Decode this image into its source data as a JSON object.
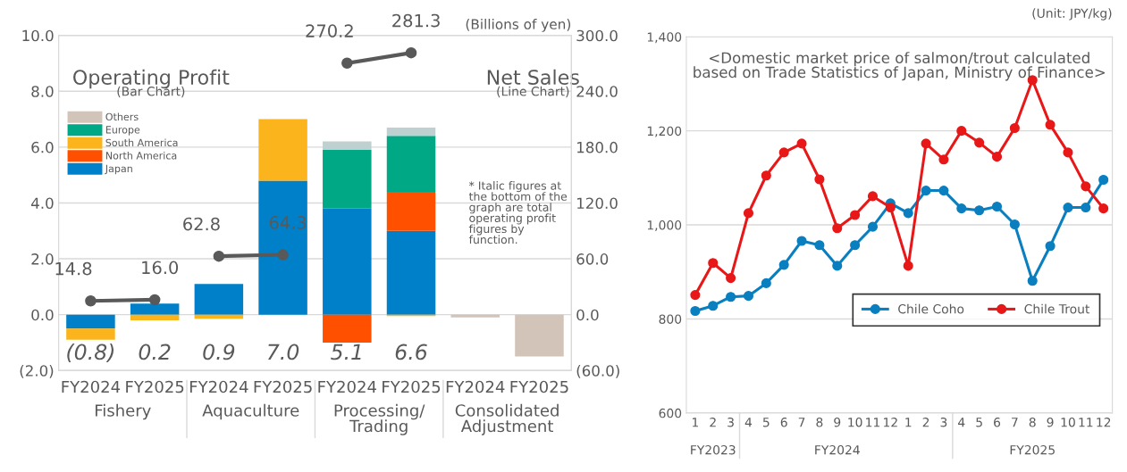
{
  "chart_data": [
    {
      "type": "bar",
      "stacked": true,
      "categories": [
        "FY2024",
        "FY2025",
        "FY2024",
        "FY2025",
        "FY2024",
        "FY2025",
        "FY2024",
        "FY2025"
      ],
      "series": [
        {
          "name": "Japan",
          "color": "#0080c8",
          "values": [
            -0.5,
            0.4,
            1.1,
            4.8,
            3.8,
            3.0,
            null,
            null
          ]
        },
        {
          "name": "North America",
          "color": "#ff5000",
          "values": [
            null,
            null,
            null,
            null,
            -1.0,
            1.4,
            null,
            null
          ]
        },
        {
          "name": "South America",
          "color": "#fbb41c",
          "values": [
            -0.4,
            -0.2,
            -0.15,
            2.2,
            null,
            -0.05,
            null,
            null
          ]
        },
        {
          "name": "Europe",
          "color": "#00a886",
          "values": [
            null,
            null,
            null,
            null,
            2.1,
            2.0,
            null,
            null
          ]
        },
        {
          "name": "Others",
          "color": "#d3c4ba",
          "colors": [
            "#d3c4ba",
            "#d3c4ba",
            "#d3c4ba",
            "#d3c4ba",
            "#bfd0d0",
            "#bfd0d0",
            "#d3c4ba",
            "#d3c4ba"
          ],
          "values": [
            null,
            null,
            null,
            null,
            0.3,
            0.3,
            -0.1,
            -1.5
          ]
        },
        {
          "type": "line",
          "axis": "y2",
          "color": "#595959",
          "values": [
            14.8,
            16.0,
            null,
            null,
            null,
            null,
            null,
            null
          ],
          "value_labels": [
            "14.8",
            "16.0",
            null,
            null,
            null,
            null,
            null,
            null
          ]
        },
        {
          "type": "line",
          "axis": "y2",
          "color": "#595959",
          "values": [
            null,
            null,
            62.8,
            64.3,
            null,
            null,
            null,
            null
          ],
          "value_labels": [
            null,
            null,
            "62.8",
            "64.3",
            null,
            null,
            null,
            null
          ]
        },
        {
          "type": "line",
          "axis": "y2",
          "color": "#595959",
          "values": [
            null,
            null,
            null,
            null,
            270.2,
            281.3,
            null,
            null
          ],
          "value_labels": [
            null,
            null,
            null,
            null,
            "270.2",
            "281.3",
            null,
            null
          ]
        }
      ],
      "totals": [
        "(0.8)",
        "0.2",
        "0.9",
        "7.0",
        "5.1",
        "6.6",
        null,
        null
      ],
      "ylim": [
        -2,
        10
      ],
      "yticks": [
        {
          "value": -2,
          "label": "(2.0)"
        },
        {
          "value": 0,
          "label": "0.0"
        },
        {
          "value": 2,
          "label": "2.0"
        },
        {
          "value": 4,
          "label": "4.0"
        },
        {
          "value": 6,
          "label": "6.0"
        },
        {
          "value": 8,
          "label": "8.0"
        },
        {
          "value": 10,
          "label": "10.0"
        }
      ],
      "y2lim": [
        -60,
        300
      ],
      "y2ticks": [
        {
          "value": -60,
          "label": "(60.0)"
        },
        {
          "value": 0,
          "label": "0.0"
        },
        {
          "value": 60,
          "label": "60.0"
        },
        {
          "value": 120,
          "label": "120.0"
        },
        {
          "value": 180,
          "label": "180.0"
        },
        {
          "value": 240,
          "label": "240.0"
        },
        {
          "value": 300,
          "label": "300.0"
        }
      ],
      "grid": "y",
      "legend": "top left",
      "marker": "circle",
      "annotations": [
        "Fishery",
        "Aquaculture",
        "Processing/\nTrading",
        "Consolidated\nAdjustment",
        "Operating Profit",
        "(Bar Chart)",
        "Net Sales",
        "(Line Chart)",
        "(Billions of yen)",
        "* Italic figures at\nthe bottom of the\ngraph are total\noperating profit\nfigures by\nfunction."
      ]
    },
    {
      "type": "line",
      "title": "<Domestic market price of salmon/trout calculated\nbased on Trade Statistics of Japan, Ministry of Finance>",
      "categories": [
        "1",
        "2",
        "3",
        "4",
        "5",
        "6",
        "7",
        "8",
        "9",
        "10",
        "11",
        "12",
        "1",
        "2",
        "3",
        "4",
        "5",
        "6",
        "7",
        "8",
        "9",
        "10",
        "11",
        "12"
      ],
      "series": [
        {
          "name": "Chile Coho",
          "color": "#0a7fc0",
          "values": [
            817,
            828,
            847,
            849,
            876,
            915,
            966,
            957,
            913,
            957,
            996,
            1046,
            1025,
            1073,
            1073,
            1035,
            1031,
            1039,
            1001,
            881,
            955,
            1037,
            1037,
            1096
          ]
        },
        {
          "name": "Chile Trout",
          "color": "#e81818",
          "values": [
            851,
            919,
            887,
            1025,
            1105,
            1154,
            1173,
            1097,
            993,
            1021,
            1061,
            1037,
            913,
            1173,
            1139,
            1200,
            1175,
            1145,
            1206,
            1308,
            1213,
            1154,
            1082,
            1035
          ]
        }
      ],
      "ylim": [
        600,
        1400
      ],
      "yticks": [
        {
          "value": 600,
          "label": "600"
        },
        {
          "value": 800,
          "label": "800"
        },
        {
          "value": 1000,
          "label": "1,000"
        },
        {
          "value": 1200,
          "label": "1,200"
        },
        {
          "value": 1400,
          "label": "1,400"
        }
      ],
      "grid": "y",
      "legend": "bottom right",
      "marker": "circle",
      "annotations": [
        "FY2023",
        "FY2024",
        "FY2025",
        "(Unit: JPY/kg)"
      ]
    }
  ]
}
